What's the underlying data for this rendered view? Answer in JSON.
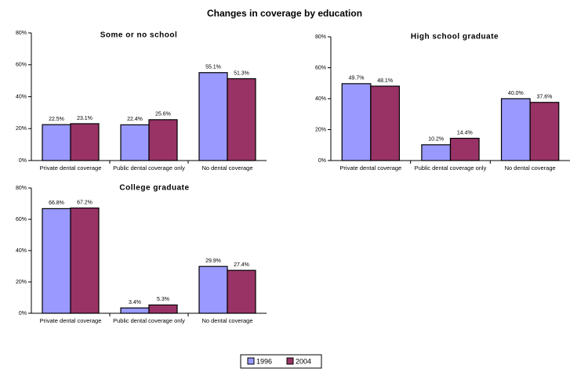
{
  "title": "Changes in coverage by education",
  "chart_data": [
    {
      "type": "bar",
      "title": "Some or no school",
      "categories": [
        "Private dental coverage",
        "Public dental coverage only",
        "No dental coverage"
      ],
      "series": [
        {
          "name": "1996",
          "color": "#9999ff",
          "values": [
            22.5,
            22.4,
            55.1
          ],
          "value_labels": [
            "22.5%",
            "22.4%",
            "55.1%"
          ]
        },
        {
          "name": "2004",
          "color": "#993366",
          "values": [
            23.1,
            25.6,
            51.3
          ],
          "value_labels": [
            "23.1%",
            "25.6%",
            "51.3%"
          ]
        }
      ],
      "ylim": [
        0,
        80
      ],
      "yticks": [
        {
          "value": 0,
          "label": "0%"
        },
        {
          "value": 20,
          "label": "20%"
        },
        {
          "value": 40,
          "label": "40%"
        },
        {
          "value": 60,
          "label": "60%"
        },
        {
          "value": 80,
          "label": "80%"
        }
      ]
    },
    {
      "type": "bar",
      "title": "High school graduate",
      "categories": [
        "Private dental coverage",
        "Public dental coverage only",
        "No dental coverage"
      ],
      "series": [
        {
          "name": "1996",
          "color": "#9999ff",
          "values": [
            49.7,
            10.2,
            40.0
          ],
          "value_labels": [
            "49.7%",
            "10.2%",
            "40.0%"
          ]
        },
        {
          "name": "2004",
          "color": "#993366",
          "values": [
            48.1,
            14.4,
            37.6
          ],
          "value_labels": [
            "48.1%",
            "14.4%",
            "37.6%"
          ]
        }
      ],
      "ylim": [
        0,
        80
      ],
      "yticks": [
        {
          "value": 0,
          "label": "0%"
        },
        {
          "value": 20,
          "label": "20%"
        },
        {
          "value": 40,
          "label": "40%"
        },
        {
          "value": 60,
          "label": "60%"
        },
        {
          "value": 80,
          "label": "80%"
        }
      ]
    },
    {
      "type": "bar",
      "title": "College graduate",
      "categories": [
        "Private dental coverage",
        "Public dental coverage only",
        "No dental coverage"
      ],
      "series": [
        {
          "name": "1996",
          "color": "#9999ff",
          "values": [
            66.8,
            3.4,
            29.9
          ],
          "value_labels": [
            "66.8%",
            "3.4%",
            "29.9%"
          ]
        },
        {
          "name": "2004",
          "color": "#993366",
          "values": [
            67.2,
            5.3,
            27.4
          ],
          "value_labels": [
            "67.2%",
            "5.3%",
            "27.4%"
          ]
        }
      ],
      "ylim": [
        0,
        80
      ],
      "yticks": [
        {
          "value": 0,
          "label": "0%"
        },
        {
          "value": 20,
          "label": "20%"
        },
        {
          "value": 40,
          "label": "40%"
        },
        {
          "value": 60,
          "label": "60%"
        },
        {
          "value": 80,
          "label": "80%"
        }
      ]
    }
  ]
}
